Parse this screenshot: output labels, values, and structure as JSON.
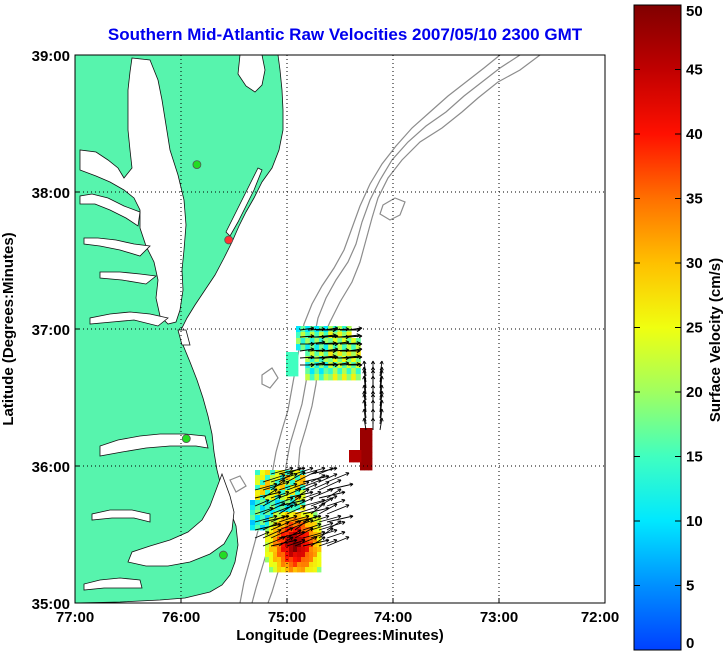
{
  "title": "Southern Mid-Atlantic Raw Velocities 2007/05/10 2300 GMT",
  "x_axis_label": "Longitude (Degrees:Minutes)",
  "y_axis_label": "Latitude (Degrees:Minutes)",
  "x_ticks": [
    "77:00",
    "76:00",
    "75:00",
    "74:00",
    "73:00",
    "72:00"
  ],
  "y_ticks": [
    "39:00",
    "38:00",
    "37:00",
    "36:00",
    "35:00"
  ],
  "colorbar": {
    "label": "Surface Velocity (cm/s)",
    "ticks": [
      "0",
      "5",
      "10",
      "15",
      "20",
      "25",
      "30",
      "35",
      "40",
      "45",
      "50"
    ],
    "min": 0,
    "max": 50
  },
  "colors": {
    "land": "#57f4ad",
    "title": "#0000ee",
    "bathymetry": "#8c8c8c",
    "site_active": "#22dd22",
    "site_inactive": "#ff3333"
  },
  "map_extent": {
    "lon": [
      -77,
      -72
    ],
    "lat": [
      35,
      39
    ]
  },
  "radar_sites": [
    {
      "lon": -75.85,
      "lat": 38.2,
      "status": "active"
    },
    {
      "lon": -75.55,
      "lat": 37.65,
      "status": "inactive"
    },
    {
      "lon": -75.95,
      "lat": 36.2,
      "status": "active"
    },
    {
      "lon": -75.6,
      "lat": 35.35,
      "status": "active"
    }
  ]
}
